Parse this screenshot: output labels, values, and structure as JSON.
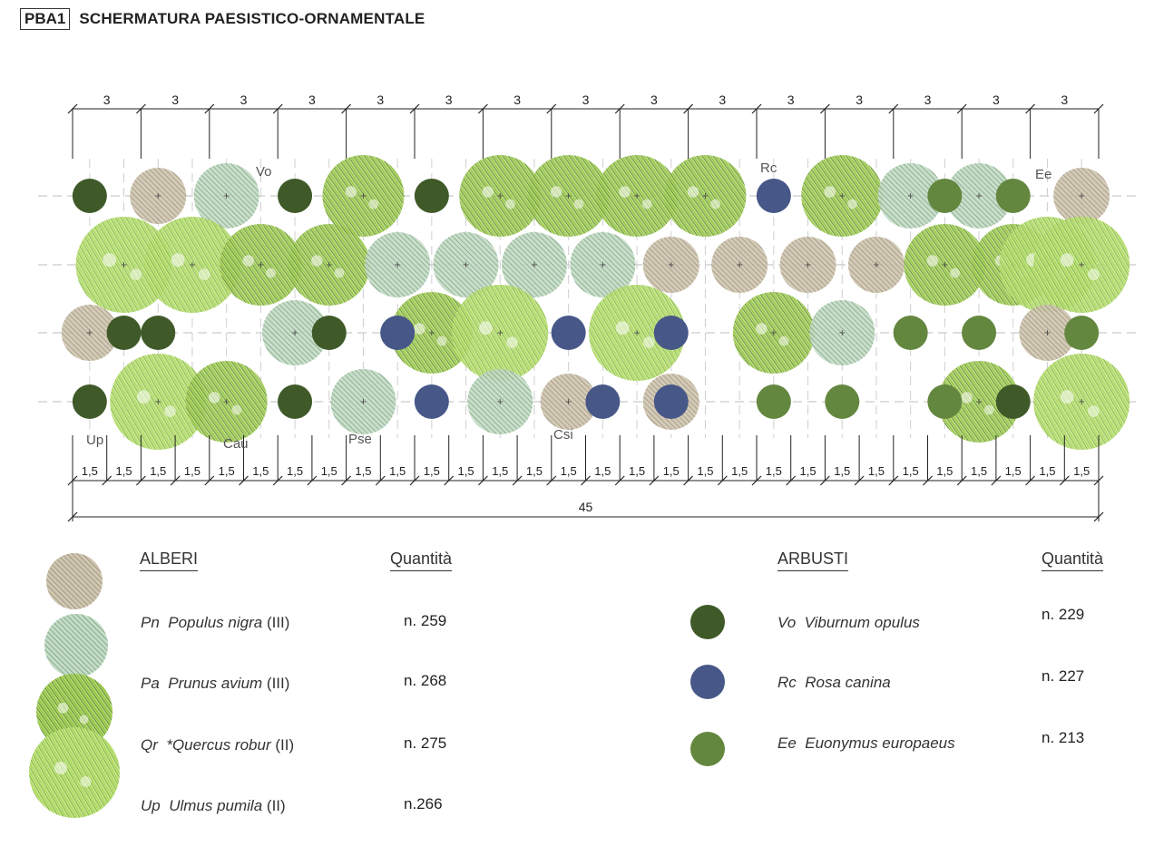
{
  "header": {
    "code": "PBA1",
    "title": "SCHERMATURA PAESISTICO-ORNAMENTALE"
  },
  "colors": {
    "poplar": "#b3a894",
    "prunus": "#7fae86",
    "quercus_dark": "#5d8a2c",
    "quercus_light": "#9ccb3a",
    "ulmus": "#8fc93a",
    "viburnum": "#3f5a28",
    "rosa": "#475788",
    "euonymus": "#64873f"
  },
  "plan": {
    "top_dims": [
      "3",
      "3",
      "3",
      "3",
      "3",
      "3",
      "3",
      "3",
      "3",
      "3",
      "3",
      "3",
      "3",
      "3",
      "3"
    ],
    "bottom_dims": [
      "1,5",
      "1,5",
      "1,5",
      "1,5",
      "1,5",
      "1,5",
      "1,5",
      "1,5",
      "1,5",
      "1,5",
      "1,5",
      "1,5",
      "1,5",
      "1,5",
      "1,5",
      "1,5",
      "1,5",
      "1,5",
      "1,5",
      "1,5",
      "1,5",
      "1,5",
      "1,5",
      "1,5",
      "1,5",
      "1,5",
      "1,5",
      "1,5",
      "1,5",
      "1,5"
    ],
    "total": "45",
    "labels": [
      "Vo",
      "Rc",
      "Ee",
      "Up",
      "Cau",
      "Pse",
      "Csi"
    ]
  },
  "legend": {
    "alberi": {
      "header": "ALBERI",
      "qty_header": "Quantità",
      "items": [
        {
          "code": "Pn",
          "name": "Populus nigra",
          "cls": "(III)",
          "qty": "n. 259",
          "icon": "poplar-canopy-icon"
        },
        {
          "code": "Pa",
          "name": "Prunus avium",
          "cls": "(III)",
          "qty": "n. 268",
          "icon": "prunus-canopy-icon"
        },
        {
          "code": "Qr",
          "name": "*Quercus robur",
          "cls": "(II)",
          "qty": "n. 275",
          "icon": "quercus-canopy-icon"
        },
        {
          "code": "Up",
          "name": "Ulmus pumila",
          "cls": "(II)",
          "qty": "n.266",
          "icon": "ulmus-canopy-icon"
        }
      ]
    },
    "arbusti": {
      "header": "ARBUSTI",
      "qty_header": "Quantità",
      "items": [
        {
          "code": "Vo",
          "name": "Viburnum opulus",
          "qty": "n. 229",
          "icon": "viburnum-shrub-icon"
        },
        {
          "code": "Rc",
          "name": "Rosa canina",
          "qty": "n. 227",
          "icon": "rosa-shrub-icon"
        },
        {
          "code": "Ee",
          "name": "Euonymus europaeus",
          "qty": "n. 213",
          "icon": "euonymus-shrub-icon"
        }
      ]
    }
  }
}
